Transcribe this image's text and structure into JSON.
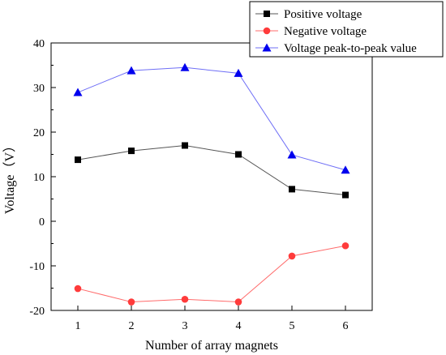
{
  "chart_data": {
    "type": "line",
    "xlabel": "Number of array magnets",
    "ylabel": "Voltage（V）",
    "x": [
      1,
      2,
      3,
      4,
      5,
      6
    ],
    "xlim": [
      0.5,
      6.5
    ],
    "ylim": [
      -20,
      40
    ],
    "xticks": [
      "1",
      "2",
      "3",
      "4",
      "5",
      "6"
    ],
    "yticks": [
      "-20",
      "-10",
      "0",
      "10",
      "20",
      "30",
      "40"
    ],
    "grid": false,
    "legend_position": "top-right",
    "series": [
      {
        "name": "Positive voltage",
        "values": [
          13.8,
          15.8,
          17.0,
          15.0,
          7.2,
          5.9
        ],
        "color": "#000000",
        "line_color": "#555555",
        "marker": "square"
      },
      {
        "name": "Negative voltage",
        "values": [
          -15.1,
          -18.1,
          -17.5,
          -18.1,
          -7.8,
          -5.5
        ],
        "color": "#ff3b3b",
        "line_color": "#ff6b6b",
        "marker": "circle"
      },
      {
        "name": "Voltage peak-to-peak value",
        "values": [
          28.9,
          33.8,
          34.5,
          33.2,
          14.9,
          11.5
        ],
        "color": "#0000ee",
        "line_color": "#6f6ff6",
        "marker": "triangle"
      }
    ]
  }
}
